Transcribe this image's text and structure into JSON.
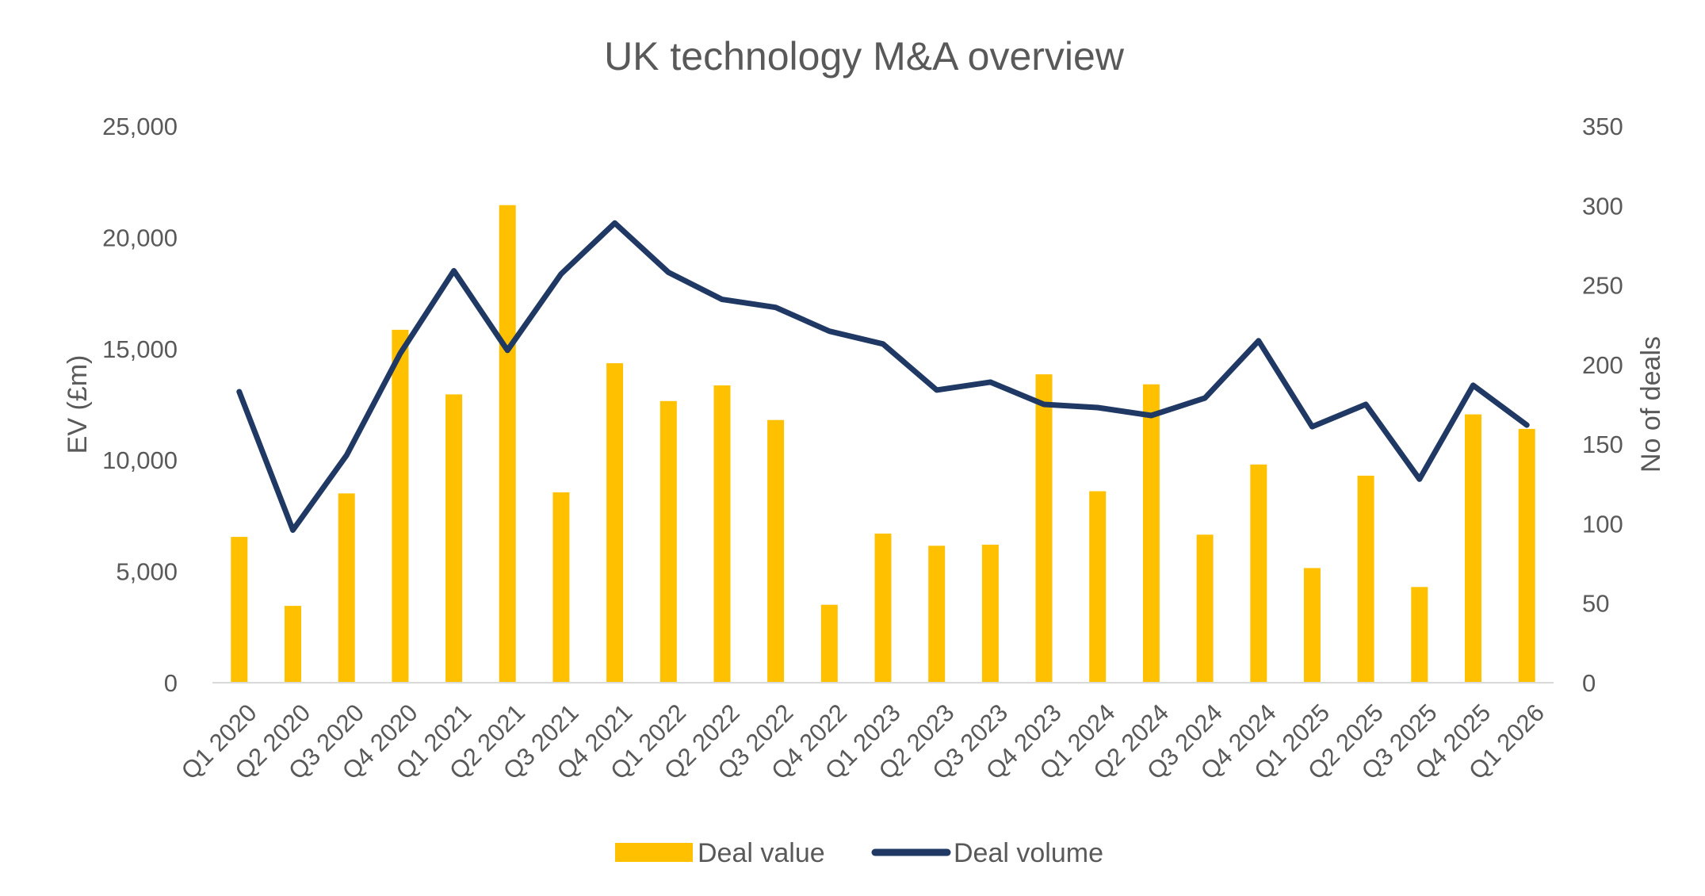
{
  "chart_data": {
    "type": "bar+line",
    "title": "UK technology M&A overview",
    "categories": [
      "Q1 2020",
      "Q2 2020",
      "Q3 2020",
      "Q4 2020",
      "Q1 2021",
      "Q2 2021",
      "Q3 2021",
      "Q4 2021",
      "Q1 2022",
      "Q2 2022",
      "Q3 2022",
      "Q4 2022",
      "Q1 2023",
      "Q2 2023",
      "Q3 2023",
      "Q4 2023",
      "Q1 2024",
      "Q2 2024",
      "Q3 2024",
      "Q4 2024",
      "Q1 2025",
      "Q2 2025",
      "Q3 2025",
      "Q4 2025",
      "Q1 2026"
    ],
    "y_left": {
      "label": "EV (£m)",
      "ylim": [
        0,
        25000
      ],
      "ticks": [
        0,
        5000,
        10000,
        15000,
        20000,
        25000
      ],
      "tick_labels": [
        "0",
        "5,000",
        "10,000",
        "15,000",
        "20,000",
        "25,000"
      ]
    },
    "y_right": {
      "label": "No of deals",
      "ylim": [
        0,
        350
      ],
      "ticks": [
        0,
        50,
        100,
        150,
        200,
        250,
        300,
        350
      ],
      "tick_labels": [
        "0",
        "50",
        "100",
        "150",
        "200",
        "250",
        "300",
        "350"
      ]
    },
    "series": [
      {
        "name": "Deal value",
        "type": "bar",
        "axis": "left",
        "color": "#FFC000",
        "values": [
          6550,
          3450,
          8500,
          15850,
          12950,
          21450,
          8550,
          14350,
          12650,
          13350,
          11800,
          3500,
          6700,
          6150,
          6200,
          13850,
          8600,
          13400,
          6650,
          9800,
          5150,
          9300,
          4300,
          12050,
          11400
        ]
      },
      {
        "name": "Deal volume",
        "type": "line",
        "axis": "right",
        "color": "#1F3864",
        "values": [
          183,
          96,
          143,
          207,
          259,
          209,
          257,
          289,
          258,
          241,
          236,
          221,
          213,
          184,
          189,
          175,
          173,
          168,
          179,
          215,
          161,
          175,
          128,
          187,
          162
        ]
      }
    ],
    "grid": false,
    "legend": "bottom-center"
  }
}
